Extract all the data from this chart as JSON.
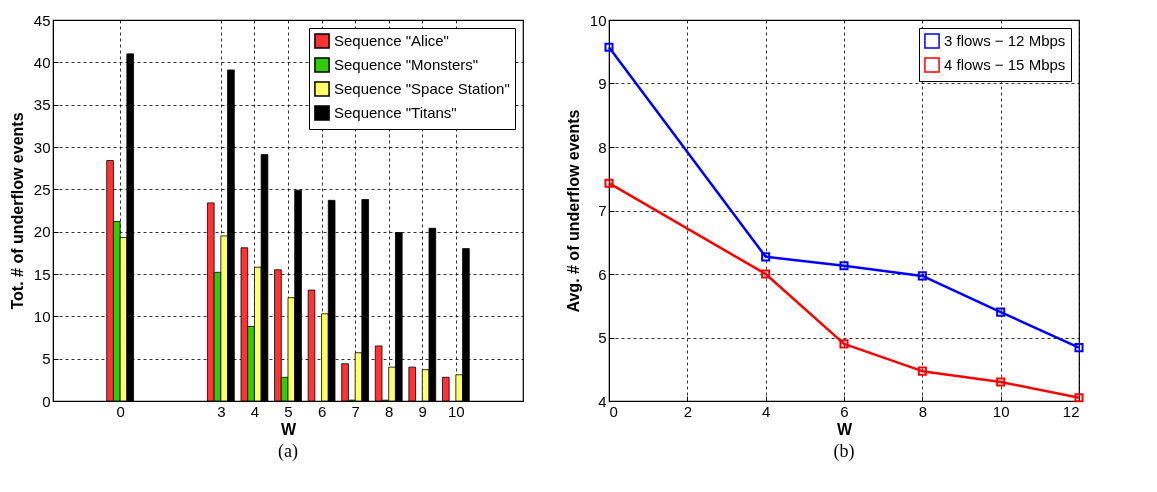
{
  "chart_data": [
    {
      "type": "bar",
      "x": [
        0,
        3,
        4,
        5,
        6,
        7,
        8,
        9,
        10
      ],
      "xlabel": "W",
      "ylabel": "Tot. # of underflow events",
      "xlim": [
        -2,
        12
      ],
      "xticks": [
        0,
        3,
        4,
        5,
        6,
        7,
        8,
        9,
        10
      ],
      "ylim": [
        0,
        45
      ],
      "yticks": [
        0,
        5,
        10,
        15,
        20,
        25,
        30,
        35,
        40,
        45
      ],
      "grid": true,
      "legend": "top right",
      "annotations": [
        "(a)"
      ],
      "series": [
        {
          "name": "Sequence \"Alice\"",
          "color": "#ff3333",
          "values": [
            28.4,
            23.4,
            18.1,
            15.5,
            13.1,
            4.4,
            6.5,
            4.0,
            2.8
          ]
        },
        {
          "name": "Sequence \"Monsters\"",
          "color": "#33cc00",
          "values": [
            21.2,
            15.2,
            8.8,
            2.8,
            null,
            0.1,
            0.1,
            null,
            null
          ]
        },
        {
          "name": "Sequence \"Space Station\"",
          "color": "#ffff66",
          "values": [
            19.3,
            19.5,
            15.8,
            12.2,
            10.3,
            5.7,
            4.0,
            3.7,
            3.1
          ]
        },
        {
          "name": "Sequence \"Titans\"",
          "color": "#000000",
          "values": [
            41.0,
            39.1,
            29.1,
            24.9,
            23.7,
            23.8,
            19.9,
            20.4,
            18.0
          ]
        }
      ]
    },
    {
      "type": "line",
      "x": [
        0,
        4,
        6,
        8,
        10,
        12
      ],
      "xlabel": "W",
      "ylabel": "Avg. # of underflow events",
      "xlim": [
        0,
        12
      ],
      "xticks": [
        0,
        2,
        4,
        6,
        8,
        10,
        12
      ],
      "ylim": [
        4,
        10
      ],
      "yticks": [
        4,
        5,
        6,
        7,
        8,
        9,
        10
      ],
      "grid": true,
      "legend": "top right",
      "marker": "square",
      "line_style": "solid",
      "annotations": [
        "(b)"
      ],
      "series": [
        {
          "name": "3 flows − 12 Mbps",
          "color": "#0000ff",
          "values": [
            9.57,
            6.27,
            6.13,
            5.97,
            5.4,
            4.84
          ]
        },
        {
          "name": "4 flows − 15 Mbps",
          "color": "#ff0000",
          "values": [
            7.43,
            6.0,
            4.9,
            4.47,
            4.3,
            4.05
          ]
        }
      ]
    }
  ]
}
